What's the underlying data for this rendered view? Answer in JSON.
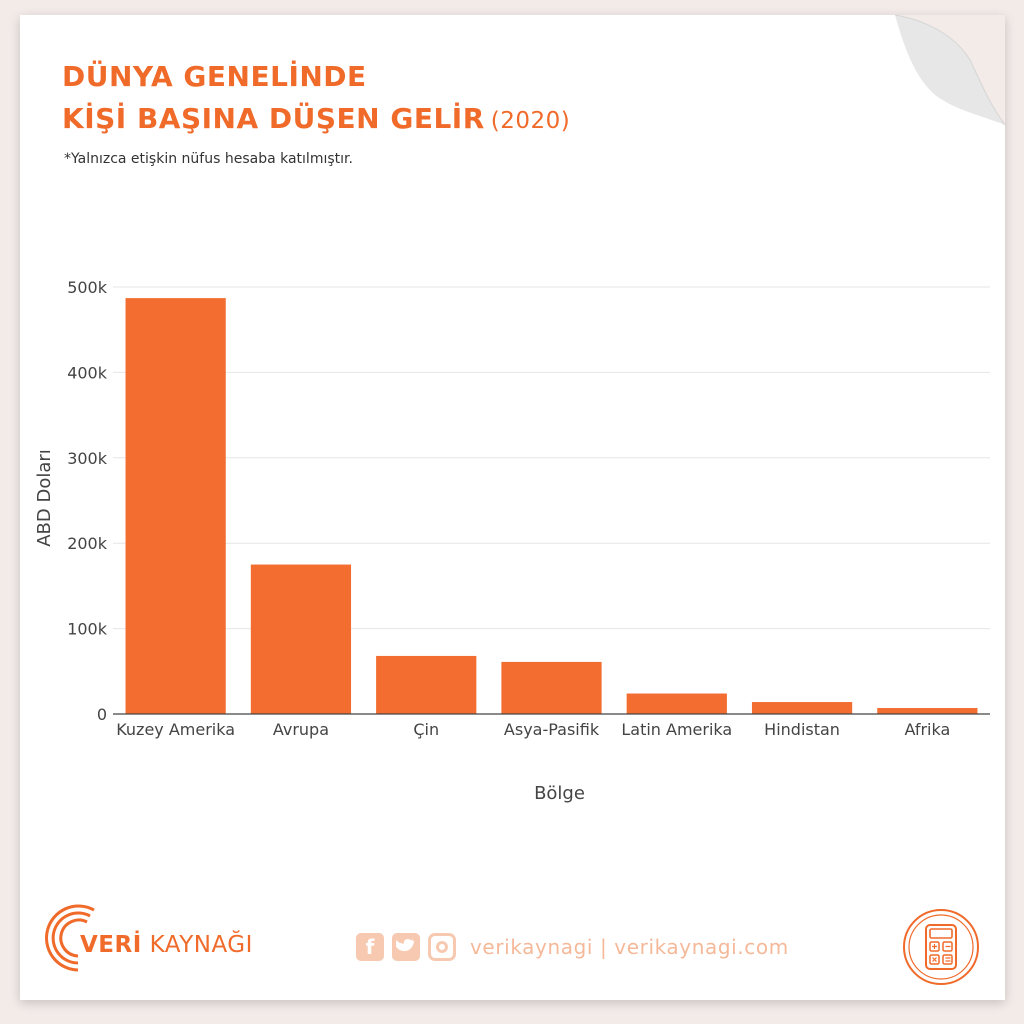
{
  "header": {
    "title_line1": "DÜNYA GENELİNDE",
    "title_line2": "KİŞİ BAŞINA DÜŞEN GELİR",
    "title_year": "(2020)",
    "subtitle": "*Yalnızca etişkin nüfus hesaba katılmıştır."
  },
  "chart_data": {
    "type": "bar",
    "categories": [
      "Kuzey Amerika",
      "Avrupa",
      "Çin",
      "Asya-Pasifik",
      "Latin Amerika",
      "Hindistan",
      "Afrika"
    ],
    "values": [
      487000,
      175000,
      68000,
      61000,
      24000,
      14000,
      7000
    ],
    "xlabel": "Bölge",
    "ylabel": "ABD Doları",
    "ylim": [
      0,
      500000
    ],
    "yticks": [
      0,
      100000,
      200000,
      300000,
      400000,
      500000
    ],
    "ytick_labels": [
      "0",
      "100k",
      "200k",
      "300k",
      "400k",
      "500k"
    ],
    "grid": true,
    "bar_color": "#f46d30"
  },
  "footer": {
    "brand_bold": "VERİ",
    "brand_rest": " KAYNAĞI",
    "social_handle": "verikaynagi | verikaynagi.com",
    "icons": [
      "facebook-icon",
      "twitter-icon",
      "instagram-icon",
      "calculator-icon"
    ]
  },
  "colors": {
    "accent": "#f06a2a",
    "bar": "#f46d30",
    "social": "#f5b99a"
  }
}
